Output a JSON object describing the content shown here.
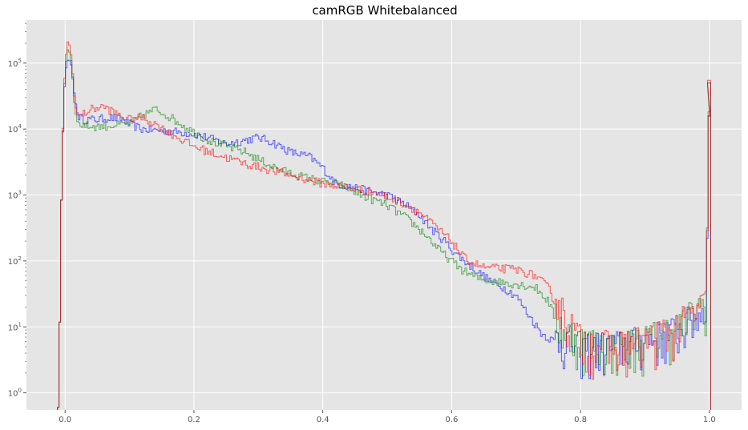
{
  "chart_data": {
    "type": "histogram",
    "title": "camRGB Whitebalanced",
    "xlabel": "",
    "ylabel": "",
    "xlim": [
      -0.06,
      1.05
    ],
    "ylim": [
      0.55,
      450000
    ],
    "yscale": "log",
    "grid": true,
    "x_ticks": [
      {
        "value": 0.0,
        "label": "0.0"
      },
      {
        "value": 0.2,
        "label": "0.2"
      },
      {
        "value": 0.4,
        "label": "0.4"
      },
      {
        "value": 0.6,
        "label": "0.6"
      },
      {
        "value": 0.8,
        "label": "0.8"
      },
      {
        "value": 1.0,
        "label": "1.0"
      }
    ],
    "y_ticks": [
      {
        "value": 1,
        "base": "10",
        "exp": "0"
      },
      {
        "value": 10,
        "base": "10",
        "exp": "1"
      },
      {
        "value": 100,
        "base": "10",
        "exp": "2"
      },
      {
        "value": 1000,
        "base": "10",
        "exp": "3"
      },
      {
        "value": 10000,
        "base": "10",
        "exp": "4"
      },
      {
        "value": 100000,
        "base": "10",
        "exp": "5"
      }
    ],
    "series": [
      {
        "color": "#0000ff",
        "points": [
          [
            -0.01,
            0.6
          ],
          [
            -0.005,
            3000
          ],
          [
            0.0,
            70000
          ],
          [
            0.005,
            120000
          ],
          [
            0.01,
            90000
          ],
          [
            0.015,
            30000
          ],
          [
            0.02,
            16000
          ],
          [
            0.03,
            14000
          ],
          [
            0.05,
            14000
          ],
          [
            0.07,
            15000
          ],
          [
            0.09,
            14000
          ],
          [
            0.1,
            12000
          ],
          [
            0.12,
            10000
          ],
          [
            0.15,
            9500
          ],
          [
            0.18,
            9000
          ],
          [
            0.2,
            8500
          ],
          [
            0.22,
            7500
          ],
          [
            0.25,
            6000
          ],
          [
            0.27,
            6500
          ],
          [
            0.3,
            7500
          ],
          [
            0.32,
            6500
          ],
          [
            0.35,
            4500
          ],
          [
            0.38,
            3800
          ],
          [
            0.4,
            2600
          ],
          [
            0.42,
            1500
          ],
          [
            0.45,
            1300
          ],
          [
            0.48,
            1100
          ],
          [
            0.5,
            1000
          ],
          [
            0.53,
            700
          ],
          [
            0.55,
            500
          ],
          [
            0.57,
            300
          ],
          [
            0.59,
            200
          ],
          [
            0.6,
            150
          ],
          [
            0.62,
            100
          ],
          [
            0.64,
            70
          ],
          [
            0.66,
            50
          ],
          [
            0.68,
            40
          ],
          [
            0.7,
            30
          ],
          [
            0.72,
            15
          ],
          [
            0.74,
            8
          ],
          [
            0.76,
            6
          ],
          [
            0.78,
            5
          ],
          [
            0.8,
            4
          ],
          [
            0.85,
            4
          ],
          [
            0.9,
            5
          ],
          [
            0.95,
            7
          ],
          [
            0.98,
            12
          ],
          [
            0.995,
            15
          ],
          [
            1.0,
            50000
          ]
        ]
      },
      {
        "color": "#008000",
        "points": [
          [
            -0.01,
            0.6
          ],
          [
            -0.005,
            3000
          ],
          [
            0.0,
            80000
          ],
          [
            0.005,
            180000
          ],
          [
            0.01,
            100000
          ],
          [
            0.015,
            20000
          ],
          [
            0.02,
            12000
          ],
          [
            0.04,
            11000
          ],
          [
            0.06,
            11000
          ],
          [
            0.08,
            11500
          ],
          [
            0.1,
            12000
          ],
          [
            0.12,
            16000
          ],
          [
            0.14,
            20000
          ],
          [
            0.16,
            16000
          ],
          [
            0.18,
            12000
          ],
          [
            0.2,
            9000
          ],
          [
            0.22,
            7000
          ],
          [
            0.25,
            5500
          ],
          [
            0.28,
            4500
          ],
          [
            0.3,
            3500
          ],
          [
            0.33,
            2500
          ],
          [
            0.36,
            2000
          ],
          [
            0.4,
            1600
          ],
          [
            0.43,
            1400
          ],
          [
            0.46,
            1000
          ],
          [
            0.5,
            700
          ],
          [
            0.53,
            450
          ],
          [
            0.56,
            250
          ],
          [
            0.58,
            150
          ],
          [
            0.6,
            100
          ],
          [
            0.62,
            70
          ],
          [
            0.64,
            55
          ],
          [
            0.66,
            50
          ],
          [
            0.7,
            45
          ],
          [
            0.73,
            40
          ],
          [
            0.75,
            25
          ],
          [
            0.77,
            8
          ],
          [
            0.8,
            5
          ],
          [
            0.85,
            4
          ],
          [
            0.9,
            5
          ],
          [
            0.95,
            8
          ],
          [
            0.98,
            14
          ],
          [
            0.995,
            20
          ],
          [
            1.0,
            50000
          ]
        ]
      },
      {
        "color": "#ff0000",
        "points": [
          [
            -0.01,
            0.6
          ],
          [
            -0.005,
            3000
          ],
          [
            0.0,
            100000
          ],
          [
            0.005,
            240000
          ],
          [
            0.01,
            120000
          ],
          [
            0.015,
            25000
          ],
          [
            0.02,
            15000
          ],
          [
            0.04,
            20000
          ],
          [
            0.06,
            22000
          ],
          [
            0.08,
            17000
          ],
          [
            0.1,
            14000
          ],
          [
            0.12,
            15000
          ],
          [
            0.14,
            12000
          ],
          [
            0.16,
            9000
          ],
          [
            0.18,
            7000
          ],
          [
            0.2,
            5500
          ],
          [
            0.24,
            4000
          ],
          [
            0.28,
            3000
          ],
          [
            0.32,
            2400
          ],
          [
            0.36,
            1900
          ],
          [
            0.4,
            1500
          ],
          [
            0.44,
            1300
          ],
          [
            0.48,
            1100
          ],
          [
            0.52,
            800
          ],
          [
            0.55,
            550
          ],
          [
            0.58,
            300
          ],
          [
            0.6,
            200
          ],
          [
            0.62,
            110
          ],
          [
            0.65,
            80
          ],
          [
            0.7,
            75
          ],
          [
            0.73,
            60
          ],
          [
            0.75,
            40
          ],
          [
            0.77,
            15
          ],
          [
            0.8,
            5
          ],
          [
            0.85,
            4
          ],
          [
            0.9,
            5
          ],
          [
            0.95,
            8
          ],
          [
            0.98,
            14
          ],
          [
            0.995,
            18
          ],
          [
            1.0,
            55000
          ]
        ]
      }
    ]
  }
}
